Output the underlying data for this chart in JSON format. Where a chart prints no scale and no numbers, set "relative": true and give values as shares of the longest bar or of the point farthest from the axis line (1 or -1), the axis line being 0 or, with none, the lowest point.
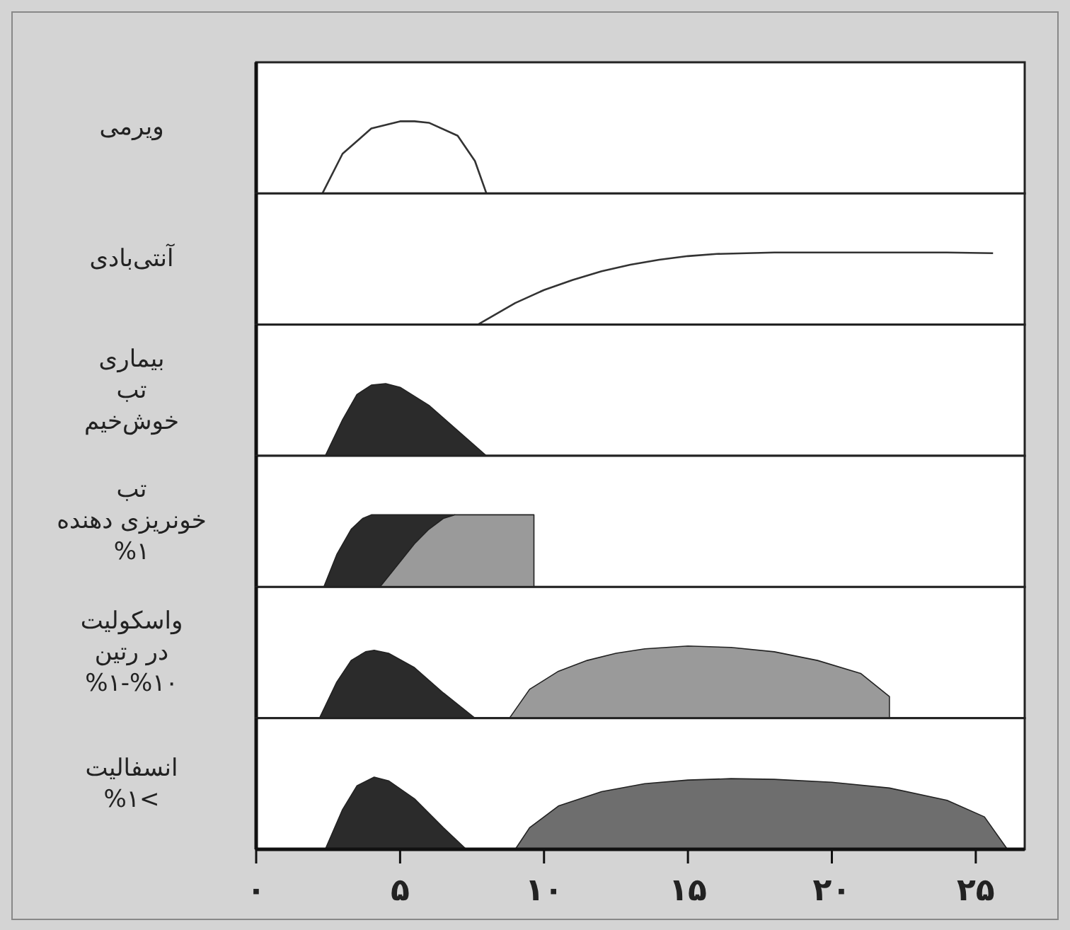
{
  "chart_data": [
    {
      "type": "line",
      "relative": true,
      "ylabel": "ویرمی",
      "xlim": [
        0,
        26.7
      ],
      "series": [
        {
          "color": "#333333",
          "x": [
            2.3,
            3,
            4,
            5,
            5.5,
            6,
            7,
            7.6,
            8
          ],
          "values": [
            0,
            0.55,
            0.9,
            1,
            1,
            0.98,
            0.8,
            0.45,
            0
          ]
        }
      ]
    },
    {
      "type": "line",
      "relative": true,
      "ylabel": "آنتی‌بادی",
      "xlim": [
        0,
        26.7
      ],
      "series": [
        {
          "color": "#333333",
          "x": [
            7.7,
            9,
            10,
            11,
            12,
            13,
            14,
            15,
            16,
            18,
            20,
            22,
            24,
            25.6
          ],
          "values": [
            0,
            0.3,
            0.48,
            0.62,
            0.74,
            0.83,
            0.9,
            0.95,
            0.98,
            1,
            1,
            1,
            1,
            0.99
          ]
        }
      ]
    },
    {
      "type": "area",
      "relative": true,
      "ylabel": "بیماری\nتب\nخوش‌خیم",
      "xlim": [
        0,
        26.7
      ],
      "series": [
        {
          "color": "#2b2b2b",
          "x": [
            2.4,
            3,
            3.5,
            4,
            4.5,
            5,
            6,
            7,
            8
          ],
          "values": [
            0,
            0.5,
            0.85,
            0.98,
            1,
            0.95,
            0.7,
            0.35,
            0
          ]
        }
      ]
    },
    {
      "type": "area",
      "relative": true,
      "ylabel": "تب\nخونریزی دهنده\n%۱",
      "xlim": [
        0,
        26.7
      ],
      "series": [
        {
          "color": "#2b2b2b",
          "x": [
            2.35,
            2.8,
            3.3,
            3.7,
            4.0,
            6.9
          ],
          "values": [
            0,
            0.45,
            0.8,
            0.95,
            1,
            1
          ]
        },
        {
          "color": "#9a9a9a",
          "x": [
            4.3,
            5,
            5.5,
            6,
            6.5,
            6.9,
            9.65
          ],
          "values": [
            0,
            0.35,
            0.6,
            0.8,
            0.95,
            1,
            1
          ]
        }
      ]
    },
    {
      "type": "area",
      "relative": true,
      "ylabel": "واسکولیت\nدر رتین\n%۱-%۱۰",
      "xlim": [
        0,
        26.7
      ],
      "series": [
        {
          "color": "#2b2b2b",
          "x": [
            2.2,
            2.8,
            3.3,
            3.8,
            4.1,
            4.6,
            5.5,
            6.5,
            7.6
          ],
          "values": [
            0,
            0.5,
            0.8,
            0.92,
            0.94,
            0.9,
            0.7,
            0.35,
            0
          ]
        },
        {
          "color": "#9a9a9a",
          "x": [
            8.8,
            9.5,
            10.5,
            11.5,
            12.5,
            13.5,
            15,
            16.5,
            18,
            19.5,
            21,
            22
          ],
          "values": [
            0,
            0.4,
            0.65,
            0.8,
            0.9,
            0.96,
            1,
            0.98,
            0.92,
            0.8,
            0.62,
            0.3
          ]
        }
      ]
    },
    {
      "type": "area",
      "relative": true,
      "ylabel": "انسفالیت\n%۱<",
      "xlim": [
        0,
        26.7
      ],
      "tick_labels": "x",
      "xticks": [
        {
          "value": 0,
          "label": "۰"
        },
        {
          "value": 5,
          "label": "۵"
        },
        {
          "value": 10,
          "label": "۱۰"
        },
        {
          "value": 15,
          "label": "۱۵"
        },
        {
          "value": 20,
          "label": "۲۰"
        },
        {
          "value": 25,
          "label": "۲۵"
        }
      ],
      "series": [
        {
          "color": "#2b2b2b",
          "x": [
            2.4,
            3,
            3.5,
            4.1,
            4.6,
            5.5,
            6.5,
            7.3
          ],
          "values": [
            0,
            0.55,
            0.88,
            1,
            0.95,
            0.7,
            0.3,
            0
          ]
        },
        {
          "color": "#6e6e6e",
          "x": [
            9,
            9.5,
            10.5,
            12,
            13.5,
            15,
            16.5,
            18,
            20,
            22,
            24,
            25.3,
            26.1
          ],
          "values": [
            0,
            0.3,
            0.6,
            0.8,
            0.91,
            0.96,
            0.98,
            0.97,
            0.93,
            0.85,
            0.68,
            0.45,
            0
          ]
        }
      ]
    }
  ]
}
